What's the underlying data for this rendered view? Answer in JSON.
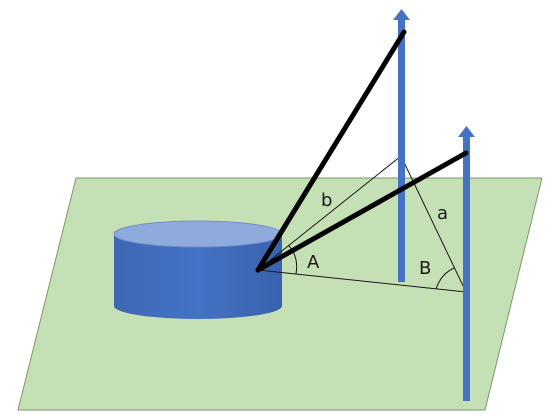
{
  "labels": {
    "side_b": "b",
    "side_a": "a",
    "angle_A": "A",
    "angle_B": "B"
  },
  "colors": {
    "ground_plane": "#c5e0b4",
    "ground_stroke": "#7a9a6a",
    "cylinder_side": "#4472c4",
    "cylinder_top": "#8faadc",
    "pole": "#4472c4",
    "thick_line": "#000000",
    "thin_line": "#1a1a1a"
  },
  "icons": {
    "pole_tip": "arrow-up-icon"
  }
}
